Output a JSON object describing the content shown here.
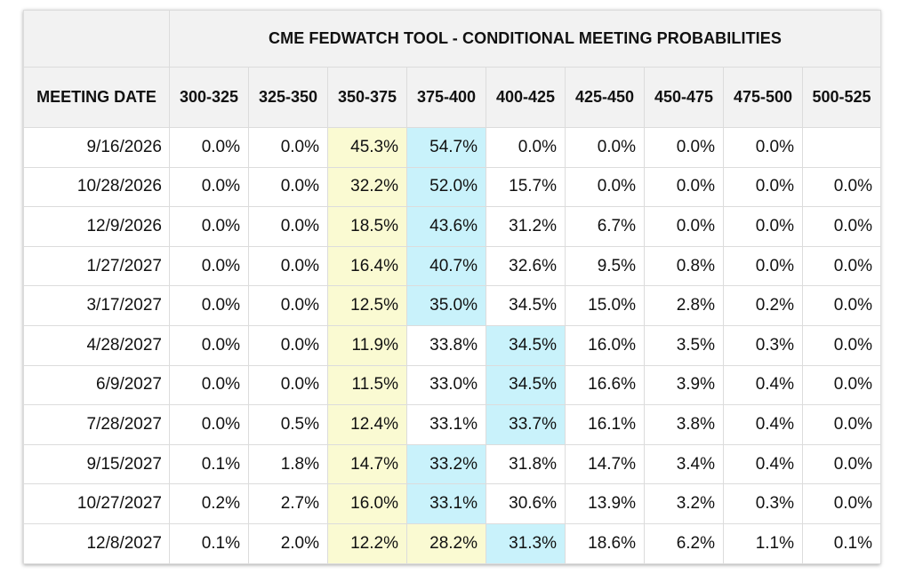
{
  "title": "CME FEDWATCH TOOL - CONDITIONAL MEETING PROBABILITIES",
  "date_header": "MEETING DATE",
  "ranges": [
    "300-325",
    "325-350",
    "350-375",
    "375-400",
    "400-425",
    "425-450",
    "450-475",
    "475-500",
    "500-525"
  ],
  "colors": {
    "header_bg": "#f2f2f2",
    "highlight_yellow": "#fafad2",
    "highlight_blue": "#c9f2fb",
    "grid": "#dcdcdc"
  },
  "rows": [
    {
      "date": "9/16/2026",
      "cells": [
        {
          "v": "0.0%"
        },
        {
          "v": "0.0%"
        },
        {
          "v": "45.3%",
          "hl": "yellow"
        },
        {
          "v": "54.7%",
          "hl": "blue"
        },
        {
          "v": "0.0%"
        },
        {
          "v": "0.0%"
        },
        {
          "v": "0.0%"
        },
        {
          "v": "0.0%"
        },
        {
          "v": ""
        }
      ]
    },
    {
      "date": "10/28/2026",
      "cells": [
        {
          "v": "0.0%"
        },
        {
          "v": "0.0%"
        },
        {
          "v": "32.2%",
          "hl": "yellow"
        },
        {
          "v": "52.0%",
          "hl": "blue"
        },
        {
          "v": "15.7%"
        },
        {
          "v": "0.0%"
        },
        {
          "v": "0.0%"
        },
        {
          "v": "0.0%"
        },
        {
          "v": "0.0%"
        }
      ]
    },
    {
      "date": "12/9/2026",
      "cells": [
        {
          "v": "0.0%"
        },
        {
          "v": "0.0%"
        },
        {
          "v": "18.5%",
          "hl": "yellow"
        },
        {
          "v": "43.6%",
          "hl": "blue"
        },
        {
          "v": "31.2%"
        },
        {
          "v": "6.7%"
        },
        {
          "v": "0.0%"
        },
        {
          "v": "0.0%"
        },
        {
          "v": "0.0%"
        }
      ]
    },
    {
      "date": "1/27/2027",
      "cells": [
        {
          "v": "0.0%"
        },
        {
          "v": "0.0%"
        },
        {
          "v": "16.4%",
          "hl": "yellow"
        },
        {
          "v": "40.7%",
          "hl": "blue"
        },
        {
          "v": "32.6%"
        },
        {
          "v": "9.5%"
        },
        {
          "v": "0.8%"
        },
        {
          "v": "0.0%"
        },
        {
          "v": "0.0%"
        }
      ]
    },
    {
      "date": "3/17/2027",
      "cells": [
        {
          "v": "0.0%"
        },
        {
          "v": "0.0%"
        },
        {
          "v": "12.5%",
          "hl": "yellow"
        },
        {
          "v": "35.0%",
          "hl": "blue"
        },
        {
          "v": "34.5%"
        },
        {
          "v": "15.0%"
        },
        {
          "v": "2.8%"
        },
        {
          "v": "0.2%"
        },
        {
          "v": "0.0%"
        }
      ]
    },
    {
      "date": "4/28/2027",
      "cells": [
        {
          "v": "0.0%"
        },
        {
          "v": "0.0%"
        },
        {
          "v": "11.9%",
          "hl": "yellow"
        },
        {
          "v": "33.8%"
        },
        {
          "v": "34.5%",
          "hl": "blue"
        },
        {
          "v": "16.0%"
        },
        {
          "v": "3.5%"
        },
        {
          "v": "0.3%"
        },
        {
          "v": "0.0%"
        }
      ]
    },
    {
      "date": "6/9/2027",
      "cells": [
        {
          "v": "0.0%"
        },
        {
          "v": "0.0%"
        },
        {
          "v": "11.5%",
          "hl": "yellow"
        },
        {
          "v": "33.0%"
        },
        {
          "v": "34.5%",
          "hl": "blue"
        },
        {
          "v": "16.6%"
        },
        {
          "v": "3.9%"
        },
        {
          "v": "0.4%"
        },
        {
          "v": "0.0%"
        }
      ]
    },
    {
      "date": "7/28/2027",
      "cells": [
        {
          "v": "0.0%"
        },
        {
          "v": "0.5%"
        },
        {
          "v": "12.4%",
          "hl": "yellow"
        },
        {
          "v": "33.1%"
        },
        {
          "v": "33.7%",
          "hl": "blue"
        },
        {
          "v": "16.1%"
        },
        {
          "v": "3.8%"
        },
        {
          "v": "0.4%"
        },
        {
          "v": "0.0%"
        }
      ]
    },
    {
      "date": "9/15/2027",
      "cells": [
        {
          "v": "0.1%"
        },
        {
          "v": "1.8%"
        },
        {
          "v": "14.7%",
          "hl": "yellow"
        },
        {
          "v": "33.2%",
          "hl": "blue"
        },
        {
          "v": "31.8%"
        },
        {
          "v": "14.7%"
        },
        {
          "v": "3.4%"
        },
        {
          "v": "0.4%"
        },
        {
          "v": "0.0%"
        }
      ]
    },
    {
      "date": "10/27/2027",
      "cells": [
        {
          "v": "0.2%"
        },
        {
          "v": "2.7%"
        },
        {
          "v": "16.0%",
          "hl": "yellow"
        },
        {
          "v": "33.1%",
          "hl": "blue"
        },
        {
          "v": "30.6%"
        },
        {
          "v": "13.9%"
        },
        {
          "v": "3.2%"
        },
        {
          "v": "0.3%"
        },
        {
          "v": "0.0%"
        }
      ]
    },
    {
      "date": "12/8/2027",
      "cells": [
        {
          "v": "0.1%"
        },
        {
          "v": "2.0%"
        },
        {
          "v": "12.2%",
          "hl": "yellow"
        },
        {
          "v": "28.2%",
          "hl": "yellow"
        },
        {
          "v": "31.3%",
          "hl": "blue"
        },
        {
          "v": "18.6%"
        },
        {
          "v": "6.2%"
        },
        {
          "v": "1.1%"
        },
        {
          "v": "0.1%"
        }
      ]
    }
  ]
}
